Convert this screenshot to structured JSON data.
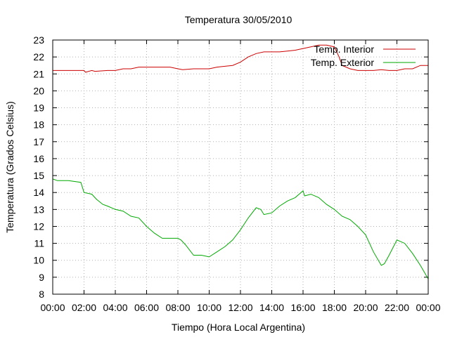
{
  "chart_data": {
    "type": "line",
    "title": "Temperatura 30/05/2010",
    "xlabel": "Tiempo (Hora Local Argentina)",
    "ylabel": "Temperatura (Grados Celsius)",
    "xlim": [
      0,
      24
    ],
    "ylim": [
      8,
      23
    ],
    "grid": true,
    "legend_position": "top-right",
    "x_ticks": [
      "00:00",
      "02:00",
      "04:00",
      "06:00",
      "08:00",
      "10:00",
      "12:00",
      "14:00",
      "16:00",
      "18:00",
      "20:00",
      "22:00",
      "00:00"
    ],
    "y_ticks": [
      "8",
      "9",
      "10",
      "11",
      "12",
      "13",
      "14",
      "15",
      "16",
      "17",
      "18",
      "19",
      "20",
      "21",
      "22",
      "23"
    ],
    "series": [
      {
        "name": "Temp. Interior",
        "color": "#cc0000",
        "x": [
          0,
          2,
          2.1,
          2.5,
          2.7,
          3.5,
          4.0,
          4.5,
          5.0,
          5.5,
          6.0,
          6.5,
          7.0,
          7.5,
          8.0,
          8.3,
          9.0,
          9.5,
          10.0,
          10.5,
          11.0,
          11.5,
          12.0,
          12.5,
          13.0,
          13.5,
          14.0,
          14.5,
          15.0,
          15.5,
          16.0,
          16.5,
          17.0,
          17.5,
          18.0,
          18.3,
          18.5,
          19.0,
          19.5,
          20.0,
          20.5,
          21.0,
          21.5,
          22.0,
          22.5,
          23.0,
          23.5,
          24.0
        ],
        "y": [
          21.2,
          21.2,
          21.1,
          21.2,
          21.15,
          21.2,
          21.2,
          21.3,
          21.3,
          21.4,
          21.4,
          21.4,
          21.4,
          21.4,
          21.3,
          21.25,
          21.3,
          21.3,
          21.3,
          21.4,
          21.45,
          21.5,
          21.7,
          22.0,
          22.2,
          22.3,
          22.3,
          22.3,
          22.35,
          22.4,
          22.5,
          22.6,
          22.7,
          22.7,
          22.6,
          22.0,
          21.5,
          21.3,
          21.2,
          21.2,
          21.2,
          21.25,
          21.2,
          21.2,
          21.3,
          21.3,
          21.5,
          21.5
        ]
      },
      {
        "name": "Temp. Exterior",
        "color": "#00aa00",
        "x": [
          0,
          0.3,
          1.0,
          1.8,
          2.0,
          2.5,
          2.8,
          3.2,
          3.5,
          4.0,
          4.5,
          5.0,
          5.5,
          6.0,
          6.5,
          7.0,
          7.5,
          8.0,
          8.2,
          8.5,
          9.0,
          9.5,
          10.0,
          10.5,
          11.0,
          11.5,
          12.0,
          12.5,
          13.0,
          13.3,
          13.5,
          14.0,
          14.5,
          15.0,
          15.5,
          16.0,
          16.1,
          16.5,
          17.0,
          17.5,
          18.0,
          18.5,
          19.0,
          19.5,
          20.0,
          20.5,
          21.0,
          21.2,
          21.5,
          22.0,
          22.5,
          23.0,
          23.5,
          24.0
        ],
        "y": [
          14.8,
          14.7,
          14.7,
          14.6,
          14.0,
          13.9,
          13.6,
          13.3,
          13.2,
          13.0,
          12.9,
          12.6,
          12.5,
          12.0,
          11.6,
          11.3,
          11.3,
          11.3,
          11.2,
          10.9,
          10.3,
          10.3,
          10.2,
          10.5,
          10.8,
          11.2,
          11.8,
          12.5,
          13.1,
          13.0,
          12.7,
          12.8,
          13.2,
          13.5,
          13.7,
          14.1,
          13.8,
          13.9,
          13.7,
          13.3,
          13.0,
          12.6,
          12.4,
          12.0,
          11.5,
          10.5,
          9.7,
          9.8,
          10.3,
          11.2,
          11.0,
          10.4,
          9.7,
          8.9
        ]
      }
    ]
  }
}
